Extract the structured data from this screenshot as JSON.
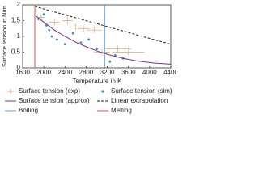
{
  "chart_data": {
    "type": "line",
    "x_label": "Temperature in K",
    "y_label": "Surface tension in N/m",
    "xlim": [
      1600,
      4400
    ],
    "xticks": [
      1600,
      2000,
      2400,
      2800,
      3200,
      3600,
      4000,
      4400
    ],
    "ylim": [
      0,
      2
    ],
    "yticks": [
      0,
      0.5,
      1,
      1.5,
      2
    ],
    "series": [
      {
        "name": "Surface tension (exp)",
        "kind": "errorbar",
        "color": "#d9a27a",
        "x": [
          1950,
          2200,
          2450,
          2600,
          2750,
          2950,
          3100,
          3400,
          3600
        ],
        "values": [
          1.6,
          1.45,
          1.5,
          1.3,
          1.25,
          1.2,
          0.5,
          0.6,
          0.5
        ],
        "xerr": [
          80,
          100,
          100,
          120,
          120,
          150,
          150,
          250,
          300
        ],
        "yerr": [
          0.1,
          0.1,
          0.12,
          0.1,
          0.1,
          0.1,
          0.1,
          0.1,
          0.1
        ]
      },
      {
        "name": "Surface tension (sim)",
        "kind": "scatter",
        "color": "#3a8fc8",
        "x": [
          1900,
          2000,
          2050,
          2100,
          2150,
          2250,
          2400,
          2550,
          2700,
          2850,
          3000,
          3250,
          3350,
          3500
        ],
        "values": [
          1.55,
          1.7,
          1.35,
          1.2,
          1.0,
          0.9,
          0.75,
          1.1,
          0.8,
          0.9,
          0.6,
          0.2,
          0.4,
          0.3
        ]
      },
      {
        "name": "Surface tension (approx)",
        "kind": "line",
        "color": "#7b2f8e",
        "x": [
          1850,
          2000,
          2200,
          2400,
          2600,
          2800,
          3000,
          3200,
          3500,
          3800,
          4100,
          4400
        ],
        "values": [
          1.65,
          1.45,
          1.2,
          1.0,
          0.82,
          0.67,
          0.54,
          0.43,
          0.3,
          0.21,
          0.15,
          0.12
        ]
      },
      {
        "name": "Linear extrapolation",
        "kind": "dashed",
        "color": "#222222",
        "x": [
          1830,
          4400
        ],
        "values": [
          1.95,
          0.75
        ]
      },
      {
        "name": "Boiling",
        "kind": "vline",
        "color": "#5aa0d8",
        "x": 3150
      },
      {
        "name": "Melting",
        "kind": "vline",
        "color": "#d9534f",
        "x": 1830
      }
    ]
  }
}
